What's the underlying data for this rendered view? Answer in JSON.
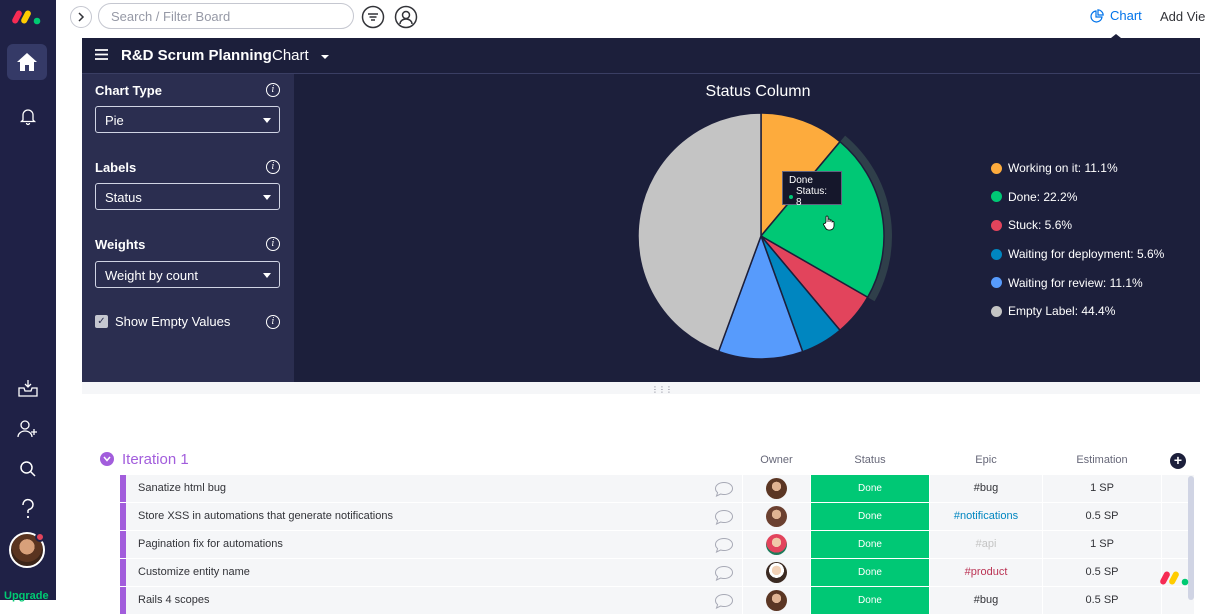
{
  "app": {
    "upgrade_label": "Upgrade"
  },
  "topbar": {
    "search_placeholder": "Search / Filter Board",
    "chart_view_label": "Chart",
    "add_view_label": "Add Vie"
  },
  "header": {
    "board_title": "R&D Scrum Planning",
    "view_title": "Chart"
  },
  "settings": {
    "chart_type": {
      "label": "Chart Type",
      "value": "Pie"
    },
    "labels": {
      "label": "Labels",
      "value": "Status"
    },
    "weights": {
      "label": "Weights",
      "value": "Weight by count"
    },
    "show_empty": {
      "label": "Show Empty Values",
      "checked": true
    }
  },
  "tooltip": {
    "title": "Done",
    "row": "Status: 8"
  },
  "chart_data": {
    "type": "pie",
    "title": "Status Column",
    "legend_position": "right",
    "slices": [
      {
        "label": "Working on it: 11.1%",
        "value": 11.1,
        "color": "#fdab3d"
      },
      {
        "label": "Done: 22.2%",
        "value": 22.2,
        "color": "#00c875"
      },
      {
        "label": "Stuck: 5.6%",
        "value": 5.6,
        "color": "#e2445c"
      },
      {
        "label": "Waiting for deployment: 5.6%",
        "value": 5.6,
        "color": "#0086c0"
      },
      {
        "label": "Waiting for review: 11.1%",
        "value": 11.1,
        "color": "#579bfc"
      },
      {
        "label": "Empty Label: 44.4%",
        "value": 44.4,
        "color": "#c4c4c4"
      }
    ],
    "highlighted": "Done"
  },
  "table": {
    "group_title": "Iteration 1",
    "group_color": "#a25ddc",
    "columns": {
      "owner": "Owner",
      "status": "Status",
      "epic": "Epic",
      "estimation": "Estimation"
    },
    "rows": [
      {
        "name": "Sanatize html bug",
        "status": "Done",
        "epic": "#bug",
        "epic_color": "#323338",
        "estimation": "1 SP"
      },
      {
        "name": "Store XSS in automations that generate notifications",
        "status": "Done",
        "epic": "#notifications",
        "epic_color": "#0086c0",
        "estimation": "0.5 SP"
      },
      {
        "name": "Pagination fix for automations",
        "status": "Done",
        "epic": "#api",
        "epic_color": "#c4c4c4",
        "estimation": "1 SP"
      },
      {
        "name": "Customize entity name",
        "status": "Done",
        "epic": "#product",
        "epic_color": "#bb3354",
        "estimation": "0.5 SP"
      },
      {
        "name": "Rails 4 scopes",
        "status": "Done",
        "epic": "#bug",
        "epic_color": "#323338",
        "estimation": "0.5 SP"
      }
    ]
  },
  "colors": {
    "rail_bg": "#1f2146",
    "chart_bg": "#1c1f3b",
    "panel_bg": "#2b2e50",
    "accent": "#0073ea",
    "done_green": "#00c875"
  }
}
